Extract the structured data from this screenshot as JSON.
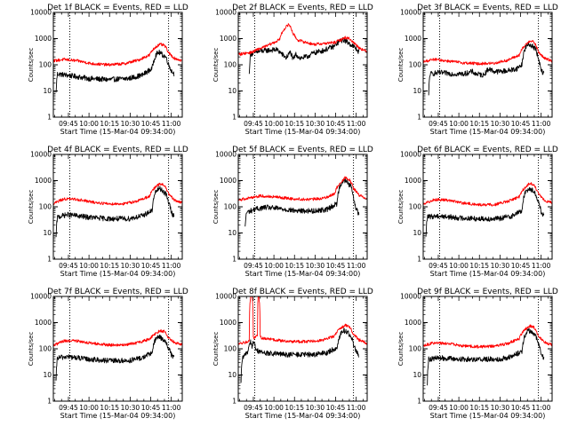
{
  "page": {
    "background": "#ffffff",
    "axis_color": "#000000"
  },
  "colors": {
    "events": "#000000",
    "lld": "#ff0000"
  },
  "chart_data": [
    {
      "type": "line",
      "title": "Det 1f BLACK = Events, RED = LLD",
      "xlabel": "Start Time (15-Mar-04 09:34:00)",
      "ylabel": "Counts/sec",
      "yscale": "log",
      "ylim": [
        1,
        10000
      ],
      "ytick_labels": [
        "1",
        "10",
        "100",
        "1000",
        "10000"
      ],
      "xtick_labels": [
        "09:45",
        "10:00",
        "10:15",
        "10:30",
        "10:45",
        "11:00"
      ],
      "xlim_minutes": [
        0,
        94
      ],
      "vlines_minutes": [
        12,
        84
      ],
      "grid": false,
      "legend": "none",
      "series": [
        {
          "name": "BLACK = Events",
          "color": "#000000",
          "start": 2,
          "end": 88,
          "x": [
            2,
            3,
            10,
            25,
            40,
            55,
            65,
            72,
            75,
            77,
            79,
            82,
            84,
            86,
            88
          ],
          "y": [
            8,
            45,
            40,
            30,
            27,
            30,
            40,
            70,
            250,
            300,
            250,
            200,
            100,
            60,
            45
          ]
        },
        {
          "name": "RED = LLD",
          "color": "#ff0000",
          "start": 0,
          "end": 94,
          "x": [
            0,
            8,
            18,
            28,
            40,
            52,
            62,
            70,
            75,
            78,
            81,
            84,
            88,
            94
          ],
          "y": [
            140,
            160,
            140,
            110,
            100,
            110,
            150,
            230,
            500,
            600,
            550,
            280,
            180,
            140
          ]
        }
      ]
    },
    {
      "type": "line",
      "title": "Det 2f BLACK = Events, RED = LLD",
      "xlabel": "Start Time (15-Mar-04 09:34:00)",
      "ylabel": "Counts/sec",
      "yscale": "log",
      "ylim": [
        1,
        10000
      ],
      "ytick_labels": [
        "1",
        "10",
        "100",
        "1000",
        "10000"
      ],
      "xtick_labels": [
        "09:45",
        "10:00",
        "10:15",
        "10:30",
        "10:45",
        "11:00"
      ],
      "xlim_minutes": [
        0,
        94
      ],
      "vlines_minutes": [
        12,
        84
      ],
      "grid": false,
      "legend": "none",
      "series": [
        {
          "name": "BLACK = Events",
          "color": "#000000",
          "start": 8,
          "end": 88,
          "x": [
            8,
            9,
            12,
            20,
            28,
            32,
            35,
            38,
            40,
            42,
            45,
            50,
            55,
            62,
            70,
            74,
            77,
            80,
            84,
            88
          ],
          "y": [
            40,
            250,
            300,
            350,
            380,
            250,
            180,
            300,
            150,
            250,
            180,
            200,
            280,
            350,
            500,
            800,
            900,
            700,
            500,
            300
          ]
        },
        {
          "name": "RED = LLD",
          "color": "#ff0000",
          "start": 0,
          "end": 94,
          "x": [
            0,
            10,
            20,
            26,
            30,
            34,
            37,
            40,
            43,
            46,
            50,
            55,
            62,
            70,
            75,
            78,
            81,
            84,
            88,
            94
          ],
          "y": [
            250,
            300,
            500,
            700,
            900,
            2500,
            3500,
            1500,
            900,
            800,
            700,
            600,
            650,
            700,
            900,
            1100,
            1000,
            700,
            450,
            300
          ]
        }
      ]
    },
    {
      "type": "line",
      "title": "Det 3f BLACK = Events, RED = LLD",
      "xlabel": "Start Time (15-Mar-04 09:34:00)",
      "ylabel": "Counts/sec",
      "yscale": "log",
      "ylim": [
        1,
        10000
      ],
      "ytick_labels": [
        "1",
        "10",
        "100",
        "1000",
        "10000"
      ],
      "xtick_labels": [
        "09:45",
        "10:00",
        "10:15",
        "10:30",
        "10:45",
        "11:00"
      ],
      "xlim_minutes": [
        0,
        94
      ],
      "vlines_minutes": [
        12,
        84
      ],
      "grid": false,
      "legend": "none",
      "series": [
        {
          "name": "BLACK = Events",
          "color": "#000000",
          "start": 4,
          "end": 88,
          "x": [
            4,
            5,
            12,
            22,
            30,
            36,
            38,
            44,
            48,
            52,
            56,
            62,
            68,
            72,
            75,
            77,
            79,
            82,
            84,
            86,
            88
          ],
          "y": [
            6,
            45,
            50,
            45,
            45,
            55,
            45,
            40,
            70,
            55,
            55,
            60,
            70,
            100,
            500,
            600,
            550,
            400,
            150,
            60,
            45
          ]
        },
        {
          "name": "RED = LLD",
          "color": "#ff0000",
          "start": 0,
          "end": 94,
          "x": [
            0,
            8,
            18,
            28,
            40,
            52,
            62,
            70,
            75,
            78,
            81,
            84,
            88,
            94
          ],
          "y": [
            130,
            160,
            140,
            120,
            110,
            115,
            150,
            230,
            600,
            850,
            700,
            300,
            180,
            140
          ]
        }
      ]
    },
    {
      "type": "line",
      "title": "Det 4f BLACK = Events, RED = LLD",
      "xlabel": "Start Time (15-Mar-04 09:34:00)",
      "ylabel": "Counts/sec",
      "yscale": "log",
      "ylim": [
        1,
        10000
      ],
      "ytick_labels": [
        "1",
        "10",
        "100",
        "1000",
        "10000"
      ],
      "xtick_labels": [
        "09:45",
        "10:00",
        "10:15",
        "10:30",
        "10:45",
        "11:00"
      ],
      "xlim_minutes": [
        0,
        94
      ],
      "vlines_minutes": [
        12,
        84
      ],
      "grid": false,
      "legend": "none",
      "series": [
        {
          "name": "BLACK = Events",
          "color": "#000000",
          "start": 2,
          "end": 88,
          "x": [
            2,
            3,
            10,
            25,
            40,
            55,
            65,
            72,
            75,
            77,
            79,
            82,
            84,
            86,
            88
          ],
          "y": [
            6,
            40,
            50,
            40,
            35,
            35,
            45,
            70,
            400,
            500,
            450,
            300,
            150,
            60,
            45
          ]
        },
        {
          "name": "RED = LLD",
          "color": "#ff0000",
          "start": 0,
          "end": 94,
          "x": [
            0,
            8,
            18,
            28,
            40,
            52,
            62,
            70,
            75,
            78,
            81,
            84,
            88,
            94
          ],
          "y": [
            130,
            200,
            190,
            150,
            130,
            130,
            170,
            250,
            600,
            750,
            650,
            300,
            180,
            140
          ]
        }
      ]
    },
    {
      "type": "line",
      "title": "Det 5f BLACK = Events, RED = LLD",
      "xlabel": "Start Time (15-Mar-04 09:34:00)",
      "ylabel": "Counts/sec",
      "yscale": "log",
      "ylim": [
        1,
        10000
      ],
      "ytick_labels": [
        "1",
        "10",
        "100",
        "1000",
        "10000"
      ],
      "xtick_labels": [
        "09:45",
        "10:00",
        "10:15",
        "10:30",
        "10:45",
        "11:00"
      ],
      "xlim_minutes": [
        0,
        94
      ],
      "vlines_minutes": [
        12,
        84
      ],
      "grid": false,
      "legend": "none",
      "series": [
        {
          "name": "BLACK = Events",
          "color": "#000000",
          "start": 5,
          "end": 88,
          "x": [
            5,
            6,
            12,
            20,
            30,
            42,
            55,
            65,
            72,
            75,
            77,
            79,
            82,
            84,
            86,
            88
          ],
          "y": [
            15,
            60,
            80,
            95,
            85,
            70,
            70,
            80,
            130,
            800,
            1000,
            900,
            600,
            200,
            80,
            50
          ]
        },
        {
          "name": "RED = LLD",
          "color": "#ff0000",
          "start": 0,
          "end": 94,
          "x": [
            0,
            8,
            16,
            26,
            40,
            52,
            62,
            70,
            75,
            78,
            81,
            84,
            88,
            94
          ],
          "y": [
            180,
            220,
            260,
            240,
            200,
            190,
            210,
            300,
            900,
            1300,
            1100,
            500,
            280,
            200
          ]
        }
      ]
    },
    {
      "type": "line",
      "title": "Det 6f BLACK = Events, RED = LLD",
      "xlabel": "Start Time (15-Mar-04 09:34:00)",
      "ylabel": "Counts/sec",
      "yscale": "log",
      "ylim": [
        1,
        10000
      ],
      "ytick_labels": [
        "1",
        "10",
        "100",
        "1000",
        "10000"
      ],
      "xtick_labels": [
        "09:45",
        "10:00",
        "10:15",
        "10:30",
        "10:45",
        "11:00"
      ],
      "xlim_minutes": [
        0,
        94
      ],
      "vlines_minutes": [
        12,
        84
      ],
      "grid": false,
      "legend": "none",
      "series": [
        {
          "name": "BLACK = Events",
          "color": "#000000",
          "start": 2,
          "end": 88,
          "x": [
            2,
            3,
            10,
            25,
            40,
            55,
            65,
            72,
            75,
            77,
            79,
            82,
            84,
            86,
            88
          ],
          "y": [
            6,
            40,
            45,
            38,
            35,
            35,
            45,
            70,
            400,
            500,
            450,
            300,
            150,
            60,
            45
          ]
        },
        {
          "name": "RED = LLD",
          "color": "#ff0000",
          "start": 0,
          "end": 94,
          "x": [
            0,
            8,
            18,
            28,
            40,
            52,
            62,
            70,
            75,
            78,
            81,
            84,
            88,
            94
          ],
          "y": [
            120,
            190,
            180,
            140,
            120,
            120,
            160,
            240,
            600,
            800,
            650,
            300,
            180,
            140
          ]
        }
      ]
    },
    {
      "type": "line",
      "title": "Det 7f BLACK = Events, RED = LLD",
      "xlabel": "Start Time (15-Mar-04 09:34:00)",
      "ylabel": "Counts/sec",
      "yscale": "log",
      "ylim": [
        1,
        10000
      ],
      "ytick_labels": [
        "1",
        "10",
        "100",
        "1000",
        "10000"
      ],
      "xtick_labels": [
        "09:45",
        "10:00",
        "10:15",
        "10:30",
        "10:45",
        "11:00"
      ],
      "xlim_minutes": [
        0,
        94
      ],
      "vlines_minutes": [
        12,
        84
      ],
      "grid": false,
      "legend": "none",
      "series": [
        {
          "name": "BLACK = Events",
          "color": "#000000",
          "start": 2,
          "end": 88,
          "x": [
            2,
            3,
            10,
            25,
            40,
            55,
            65,
            72,
            75,
            77,
            79,
            82,
            84,
            86,
            88
          ],
          "y": [
            5,
            45,
            50,
            40,
            35,
            35,
            45,
            70,
            250,
            300,
            250,
            180,
            100,
            60,
            45
          ]
        },
        {
          "name": "RED = LLD",
          "color": "#ff0000",
          "start": 0,
          "end": 94,
          "x": [
            0,
            8,
            18,
            28,
            40,
            52,
            62,
            70,
            75,
            78,
            81,
            84,
            88,
            94
          ],
          "y": [
            130,
            200,
            200,
            160,
            140,
            140,
            170,
            230,
            400,
            500,
            450,
            260,
            180,
            140
          ]
        }
      ]
    },
    {
      "type": "line",
      "title": "Det 8f BLACK = Events, RED = LLD",
      "xlabel": "Start Time (15-Mar-04 09:34:00)",
      "ylabel": "Counts/sec",
      "yscale": "log",
      "ylim": [
        1,
        10000
      ],
      "ytick_labels": [
        "1",
        "10",
        "100",
        "1000",
        "10000"
      ],
      "xtick_labels": [
        "09:45",
        "10:00",
        "10:15",
        "10:30",
        "10:45",
        "11:00"
      ],
      "xlim_minutes": [
        0,
        94
      ],
      "vlines_minutes": [
        12,
        84
      ],
      "grid": false,
      "legend": "none",
      "series": [
        {
          "name": "BLACK = Events",
          "color": "#000000",
          "start": 2,
          "end": 88,
          "x": [
            2,
            3,
            5,
            7,
            9,
            10,
            11,
            13,
            18,
            25,
            35,
            45,
            55,
            65,
            72,
            75,
            77,
            79,
            82,
            84,
            86,
            88
          ],
          "y": [
            4,
            40,
            60,
            80,
            200,
            120,
            180,
            90,
            70,
            65,
            60,
            60,
            60,
            70,
            110,
            400,
            500,
            450,
            300,
            150,
            80,
            50
          ]
        },
        {
          "name": "RED = LLD",
          "color": "#ff0000",
          "start": 0,
          "end": 94,
          "x": [
            0,
            6,
            8,
            9,
            10,
            11,
            12,
            14,
            14.5,
            15,
            16,
            17,
            18,
            24,
            32,
            40,
            52,
            62,
            70,
            75,
            78,
            81,
            84,
            88,
            94
          ],
          "y": [
            150,
            180,
            200,
            10000,
            10000,
            250,
            280,
            300,
            10000,
            10000,
            300,
            260,
            250,
            230,
            200,
            190,
            190,
            220,
            300,
            650,
            800,
            700,
            350,
            220,
            160
          ]
        }
      ]
    },
    {
      "type": "line",
      "title": "Det 9f BLACK = Events, RED = LLD",
      "xlabel": "Start Time (15-Mar-04 09:34:00)",
      "ylabel": "Counts/sec",
      "yscale": "log",
      "ylim": [
        1,
        10000
      ],
      "ytick_labels": [
        "1",
        "10",
        "100",
        "1000",
        "10000"
      ],
      "xtick_labels": [
        "09:45",
        "10:00",
        "10:15",
        "10:30",
        "10:45",
        "11:00"
      ],
      "xlim_minutes": [
        0,
        94
      ],
      "vlines_minutes": [
        12,
        84
      ],
      "grid": false,
      "legend": "none",
      "series": [
        {
          "name": "BLACK = Events",
          "color": "#000000",
          "start": 3,
          "end": 88,
          "x": [
            3,
            4,
            12,
            25,
            40,
            55,
            65,
            72,
            75,
            77,
            79,
            82,
            84,
            86,
            88
          ],
          "y": [
            5,
            40,
            45,
            40,
            40,
            40,
            50,
            80,
            400,
            500,
            450,
            300,
            150,
            60,
            45
          ]
        },
        {
          "name": "RED = LLD",
          "color": "#ff0000",
          "start": 0,
          "end": 94,
          "x": [
            0,
            8,
            18,
            28,
            40,
            52,
            62,
            70,
            75,
            78,
            81,
            84,
            88,
            94
          ],
          "y": [
            130,
            170,
            160,
            130,
            120,
            125,
            160,
            240,
            600,
            750,
            650,
            300,
            180,
            140
          ]
        }
      ]
    }
  ]
}
